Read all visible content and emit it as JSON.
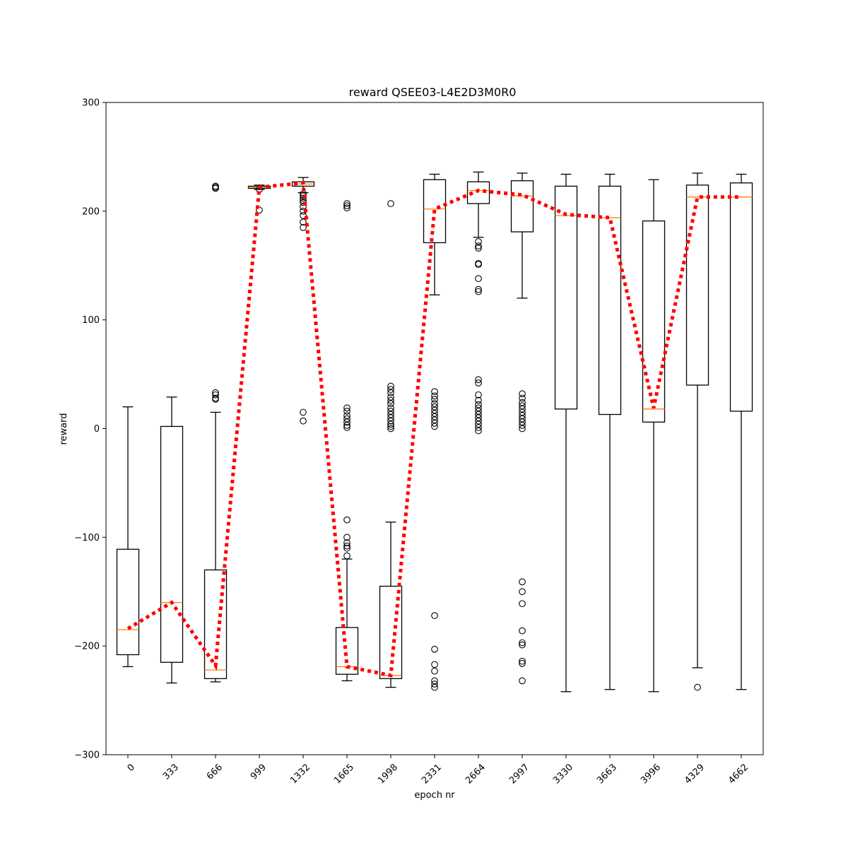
{
  "chart_data": {
    "type": "box",
    "title": "reward QSEE03-L4E2D3M0R0",
    "xlabel": "epoch nr",
    "ylabel": "reward",
    "ylim": [
      -300,
      300
    ],
    "yticks": [
      -300,
      -200,
      -100,
      0,
      100,
      200,
      300
    ],
    "ytick_labels": [
      "−300",
      "−200",
      "−100",
      "0",
      "100",
      "200",
      "300"
    ],
    "categories": [
      "0",
      "333",
      "666",
      "999",
      "1332",
      "1665",
      "1998",
      "2331",
      "2664",
      "2997",
      "3330",
      "3663",
      "3996",
      "4329",
      "4662"
    ],
    "grid": false,
    "colors": {
      "box": "#000000",
      "median": "#ff7f0e",
      "trend": "#ff0000",
      "flier": "#000000"
    },
    "boxes": [
      {
        "whislo": -219,
        "q1": -208,
        "med": -185,
        "q3": -111,
        "whishi": 20,
        "fliers": []
      },
      {
        "whislo": -234,
        "q1": -215,
        "med": -160,
        "q3": 2,
        "whishi": 29,
        "fliers": []
      },
      {
        "whislo": -233,
        "q1": -230,
        "med": -222,
        "q3": -130,
        "whishi": 15,
        "fliers": [
          27,
          28,
          31,
          33,
          221,
          222,
          223
        ]
      },
      {
        "whislo": 220,
        "q1": 221,
        "med": 222,
        "q3": 223,
        "whishi": 224,
        "fliers": [
          201,
          220
        ]
      },
      {
        "whislo": 217,
        "q1": 223,
        "med": 225,
        "q3": 227,
        "whishi": 231,
        "fliers": [
          7,
          15,
          185,
          190,
          196,
          200,
          204,
          208,
          210,
          212,
          214,
          216
        ]
      },
      {
        "whislo": -232,
        "q1": -226,
        "med": -219,
        "q3": -183,
        "whishi": -120,
        "fliers": [
          -117,
          -110,
          -108,
          -105,
          -100,
          -84,
          1,
          3,
          6,
          9,
          12,
          16,
          19,
          203,
          205,
          207
        ]
      },
      {
        "whislo": -238,
        "q1": -230,
        "med": -227,
        "q3": -145,
        "whishi": -86,
        "fliers": [
          0,
          2,
          4,
          7,
          10,
          13,
          16,
          19,
          23,
          26,
          29,
          33,
          36,
          39,
          207
        ]
      },
      {
        "whislo": 123,
        "q1": 171,
        "med": 202,
        "q3": 229,
        "whishi": 234,
        "fliers": [
          -238,
          -235,
          -232,
          -223,
          -217,
          -203,
          -172,
          2,
          5,
          8,
          11,
          14,
          17,
          20,
          23,
          27,
          30,
          34
        ]
      },
      {
        "whislo": 176,
        "q1": 207,
        "med": 219,
        "q3": 227,
        "whishi": 236,
        "fliers": [
          -2,
          1,
          4,
          7,
          10,
          13,
          16,
          19,
          22,
          26,
          31,
          42,
          45,
          126,
          128,
          138,
          151,
          152,
          166,
          168,
          172
        ]
      },
      {
        "whislo": 120,
        "q1": 181,
        "med": 214,
        "q3": 228,
        "whishi": 235,
        "fliers": [
          -232,
          -216,
          -214,
          -199,
          -197,
          -186,
          -161,
          -150,
          -141,
          0,
          3,
          6,
          9,
          12,
          15,
          18,
          21,
          24,
          28,
          32
        ]
      },
      {
        "whislo": -242,
        "q1": 18,
        "med": 196,
        "q3": 223,
        "whishi": 234,
        "fliers": []
      },
      {
        "whislo": -240,
        "q1": 13,
        "med": 194,
        "q3": 223,
        "whishi": 234,
        "fliers": []
      },
      {
        "whislo": -242,
        "q1": 6,
        "med": 18,
        "q3": 191,
        "whishi": 229,
        "fliers": []
      },
      {
        "whislo": -220,
        "q1": 40,
        "med": 213,
        "q3": 224,
        "whishi": 235,
        "fliers": [
          -238
        ]
      },
      {
        "whislo": -240,
        "q1": 16,
        "med": 213,
        "q3": 226,
        "whishi": 234,
        "fliers": []
      }
    ],
    "trend": [
      -184,
      -160,
      -218,
      222,
      226,
      -219,
      -227,
      202,
      219,
      215,
      197,
      194,
      19,
      213,
      213
    ]
  }
}
